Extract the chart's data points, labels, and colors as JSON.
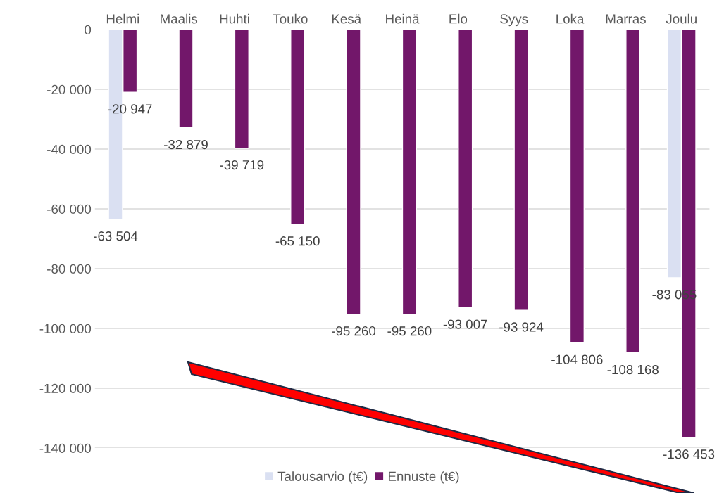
{
  "chart_data": {
    "type": "bar",
    "categories": [
      "Helmi",
      "Maalis",
      "Huhti",
      "Touko",
      "Kesä",
      "Heinä",
      "Elo",
      "Syys",
      "Loka",
      "Marras",
      "Joulu"
    ],
    "series": [
      {
        "name": "Talousarvio (t€)",
        "color": "#dae0f2",
        "values": [
          -63504,
          null,
          null,
          null,
          null,
          null,
          null,
          null,
          null,
          null,
          -83055
        ],
        "value_labels": [
          "-63 504",
          null,
          null,
          null,
          null,
          null,
          null,
          null,
          null,
          null,
          "-83 055"
        ]
      },
      {
        "name": "Ennuste (t€)",
        "color": "#72176a",
        "values": [
          -20947,
          -32879,
          -39719,
          -65150,
          -95260,
          -95260,
          -93007,
          -93924,
          -104806,
          -108168,
          -136453
        ],
        "value_labels": [
          "-20 947",
          "-32 879",
          "-39 719",
          "-65 150",
          "-95 260",
          "-95 260",
          "-93 007",
          "-93 924",
          "-104 806",
          "-108 168",
          "-136 453"
        ]
      }
    ],
    "ylim": [
      -140000,
      0
    ],
    "yticks": [
      {
        "value": 0,
        "label": "0"
      },
      {
        "value": -20000,
        "label": "-20 000"
      },
      {
        "value": -40000,
        "label": "-40 000"
      },
      {
        "value": -60000,
        "label": "-60 000"
      },
      {
        "value": -80000,
        "label": "-80 000"
      },
      {
        "value": -100000,
        "label": "-100 000"
      },
      {
        "value": -120000,
        "label": "-120 000"
      },
      {
        "value": -140000,
        "label": "-140 000"
      }
    ],
    "grid": "y",
    "legend": "bottom"
  }
}
